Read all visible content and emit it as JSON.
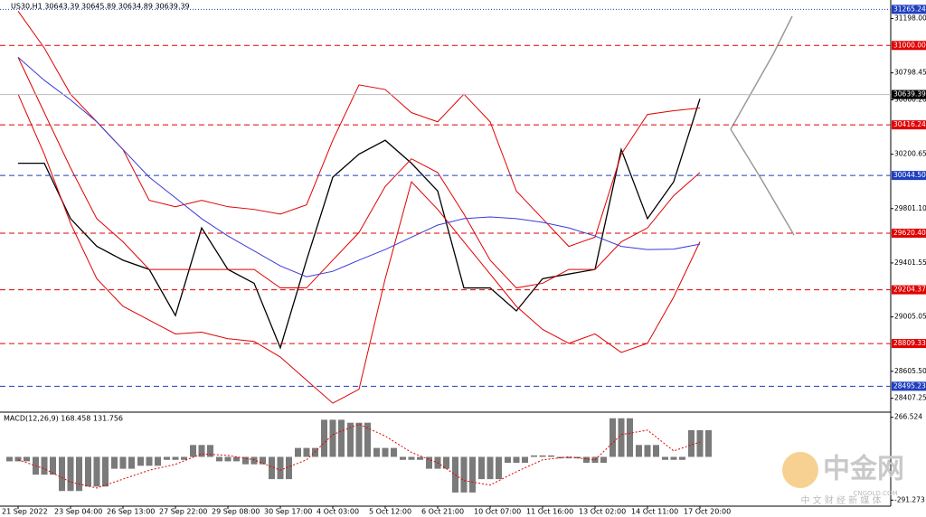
{
  "chart_data": [
    {
      "type": "line",
      "title": "US30,H1  30643.39 30645.89 30634.89 30639.39",
      "categories": [
        "21 Sep 2022",
        null,
        "23 Sep 04:00",
        null,
        "26 Sep 13:00",
        null,
        "27 Sep 22:00",
        null,
        "29 Sep 08:00",
        null,
        "30 Sep 17:00",
        null,
        "4 Oct 03:00",
        null,
        "5 Oct 12:00",
        null,
        "6 Oct 21:00",
        null,
        "10 Oct 07:00",
        null,
        "11 Oct 16:00",
        null,
        "13 Oct 02:00",
        null,
        "14 Oct 11:00",
        null,
        "17 Oct 20:00"
      ],
      "series": [
        {
          "color": "#000000",
          "values": [
            30134,
            30134,
            29727,
            29524,
            29422,
            29354,
            29015,
            29659,
            29354,
            29252,
            28778,
            29422,
            30032,
            30201,
            30303,
            30134,
            29930,
            29218,
            29218,
            29049,
            29286,
            29320,
            29354,
            30235,
            29727,
            29998,
            30608
          ]
        },
        {
          "color": "#e00000",
          "values": [
            31252,
            30981,
            30642,
            30439,
            30235,
            29862,
            29815,
            29862,
            29815,
            29795,
            29761,
            29829,
            30303,
            30710,
            30676,
            30506,
            30439,
            30642,
            30439,
            29930,
            29727,
            29523,
            29591,
            30201,
            30493,
            30520,
            30540
          ]
        },
        {
          "color": "#e00000",
          "values": [
            30913,
            30506,
            30100,
            29727,
            29557,
            29354,
            29354,
            29354,
            29354,
            29354,
            29218,
            29218,
            29422,
            29625,
            29964,
            30167,
            30066,
            29761,
            29422,
            29218,
            29252,
            29354,
            29354,
            29557,
            29659,
            29896,
            30066
          ]
        },
        {
          "color": "#e00000",
          "values": [
            30642,
            30201,
            29693,
            29286,
            29083,
            28981,
            28880,
            28893,
            28845,
            28825,
            28710,
            28540,
            28371,
            28473,
            29286,
            29998,
            29795,
            29557,
            29320,
            29083,
            28913,
            28811,
            28880,
            28744,
            28811,
            29151,
            29557
          ]
        },
        {
          "color": "#3a3ad8",
          "values": [
            30913,
            30744,
            30600,
            30439,
            30235,
            30032,
            29880,
            29727,
            29600,
            29490,
            29380,
            29300,
            29340,
            29422,
            29500,
            29591,
            29680,
            29727,
            29740,
            29727,
            29700,
            29659,
            29600,
            29523,
            29500,
            29503,
            29540
          ]
        }
      ],
      "ylim": [
        28305,
        31334
      ],
      "yticks": [
        {
          "value": 31198,
          "label": "31198.00"
        },
        30798.45,
        {
          "value": 30600.2,
          "label": "30600.20"
        },
        30200.65,
        {
          "value": 29801.1,
          "label": "29801.10"
        },
        29401.55,
        29005.05,
        {
          "value": 28605.5,
          "label": "28605.50"
        },
        28407.25
      ],
      "levels": {
        "values": [
          31265.24,
          31000,
          30639.39,
          30416.24,
          30044.5,
          29620.4,
          29204.37,
          28809.33,
          28495.23
        ],
        "value_labels": [
          "31265.24",
          "31000.00",
          "30639.39",
          "30416.24",
          "30044.50",
          "29620.40",
          "29204.37",
          "28809.33",
          "28495.23"
        ],
        "colors": [
          "#1f3fbf",
          "#e00000",
          "#000000",
          "#e00000",
          "#1f3fbf",
          "#e00000",
          "#e00000",
          "#e00000",
          "#1f3fbf"
        ],
        "styles": [
          "dotted",
          "dashed",
          "solid",
          "dashed",
          "dashed",
          "dashed",
          "dashed",
          "dashed",
          "dashed"
        ]
      }
    },
    {
      "type": "bar",
      "title": "MACD(12,26,9) 168.458 131.756",
      "series": [
        {
          "color": "#7a7a7a",
          "values": [
            -30,
            -120,
            -230,
            -200,
            -80,
            -60,
            -20,
            80,
            -30,
            -50,
            -150,
            60,
            250,
            230,
            60,
            -20,
            -80,
            -240,
            -150,
            -40,
            10,
            -10,
            -40,
            260,
            80,
            -20,
            180
          ]
        },
        {
          "color": "#e00000",
          "values": [
            -20,
            -80,
            -170,
            -210,
            -150,
            -90,
            -50,
            20,
            10,
            -20,
            -90,
            -20,
            150,
            220,
            140,
            30,
            -40,
            -160,
            -190,
            -100,
            -20,
            0,
            -20,
            150,
            180,
            40,
            100
          ]
        }
      ],
      "ylim": [
        -332,
        289
      ],
      "yticks": [
        266.524,
        -291.273
      ]
    }
  ],
  "watermark": {
    "brand": "中金网",
    "site": "CNGOLD.COM",
    "slogan": "中 文 财 经 新 媒 体"
  }
}
